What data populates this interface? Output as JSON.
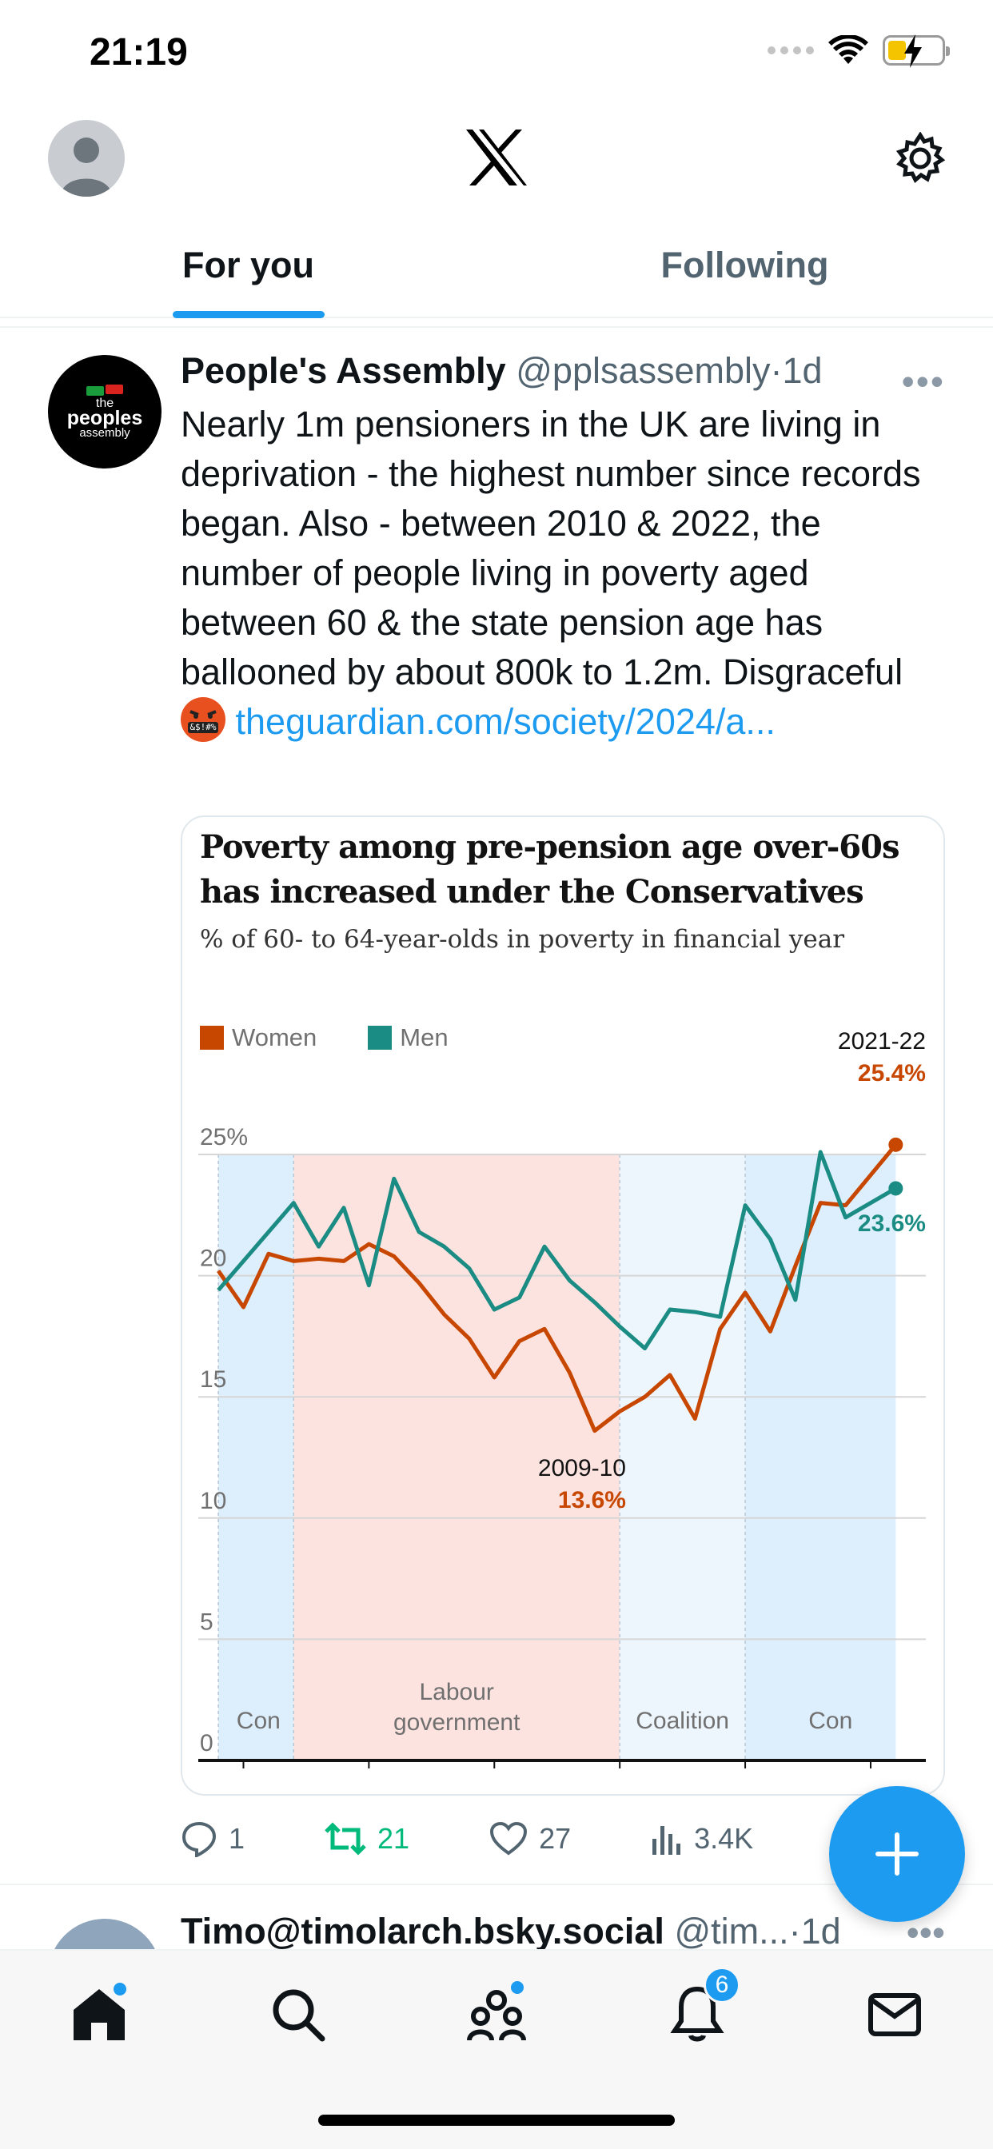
{
  "status_bar": {
    "time": "21:19"
  },
  "tabs": [
    {
      "label": "For you",
      "active": true
    },
    {
      "label": "Following",
      "active": false
    }
  ],
  "tweet": {
    "avatar_text": {
      "line1": "the",
      "line2": "peoples",
      "line3": "assembly"
    },
    "name": "People's Assembly",
    "handle": "@pplsassembly",
    "separator": "·",
    "time": "1d",
    "body": "Nearly 1m pensioners in the UK are living in deprivation - the highest number since records began. Also - between 2010 & 2022, the number of people living in poverty aged between 60 & the state pension age has ballooned by about 800k to 1.2m. Disgraceful",
    "emoji_text": "&$!#%",
    "link_text": "theguardian.com/society/2024/a...",
    "actions": {
      "replies": "1",
      "retweets": "21",
      "likes": "27",
      "views": "3.4K"
    }
  },
  "chart_data": {
    "type": "line",
    "title": "Poverty among pre-pension age over-60s has increased under the Conservatives",
    "subtitle": "% of 60- to 64-year-olds in poverty in financial year",
    "ylim": [
      0,
      25
    ],
    "yticks": [
      "0",
      "5",
      "10",
      "15",
      "20",
      "25%"
    ],
    "x": [
      1994,
      1995,
      1996,
      1997,
      1998,
      1999,
      2000,
      2001,
      2002,
      2003,
      2004,
      2005,
      2006,
      2007,
      2008,
      2009,
      2010,
      2011,
      2012,
      2013,
      2014,
      2015,
      2016,
      2017,
      2018,
      2019,
      2021
    ],
    "series": [
      {
        "name": "Women",
        "color": "#c74600",
        "values": [
          20.2,
          18.7,
          20.9,
          20.6,
          20.7,
          20.6,
          21.3,
          20.8,
          19.7,
          18.4,
          17.4,
          15.8,
          17.3,
          17.8,
          16.0,
          13.6,
          14.4,
          15.0,
          15.9,
          14.1,
          17.8,
          19.3,
          17.7,
          20.4,
          23.0,
          22.9,
          25.4
        ]
      },
      {
        "name": "Men",
        "color": "#1b8c83",
        "values": [
          19.4,
          20.6,
          21.8,
          23.0,
          21.2,
          22.8,
          19.6,
          24.0,
          21.8,
          21.2,
          20.3,
          18.6,
          19.1,
          21.2,
          19.8,
          18.9,
          17.9,
          17.0,
          18.6,
          18.5,
          18.3,
          22.9,
          21.5,
          19.0,
          25.1,
          22.4,
          23.6
        ]
      }
    ],
    "periods": [
      {
        "label": "Con",
        "start": 1994,
        "end": 1997
      },
      {
        "label": "Labour government",
        "start": 1997,
        "end": 2010
      },
      {
        "label": "Coalition",
        "start": 2010,
        "end": 2015
      },
      {
        "label": "Con",
        "start": 2015,
        "end": 2021
      }
    ],
    "annotations": [
      {
        "label": "2021-22",
        "value_label": "25.4%",
        "color": "#c74600"
      },
      {
        "label": "",
        "value_label": "23.6%",
        "color": "#1b8c83"
      },
      {
        "label": "2009-10",
        "value_label": "13.6%",
        "color": "#c74600"
      }
    ]
  },
  "next_tweet": {
    "name": "Timo@timolarch.bsky.social",
    "handle": "@tim...",
    "separator": "·",
    "time": "1d"
  },
  "bottom_nav": {
    "notifications_count": "6"
  },
  "colors": {
    "accent": "#1d9bf0",
    "retweet": "#00ba7c",
    "women": "#c74600",
    "men": "#1b8c83"
  }
}
